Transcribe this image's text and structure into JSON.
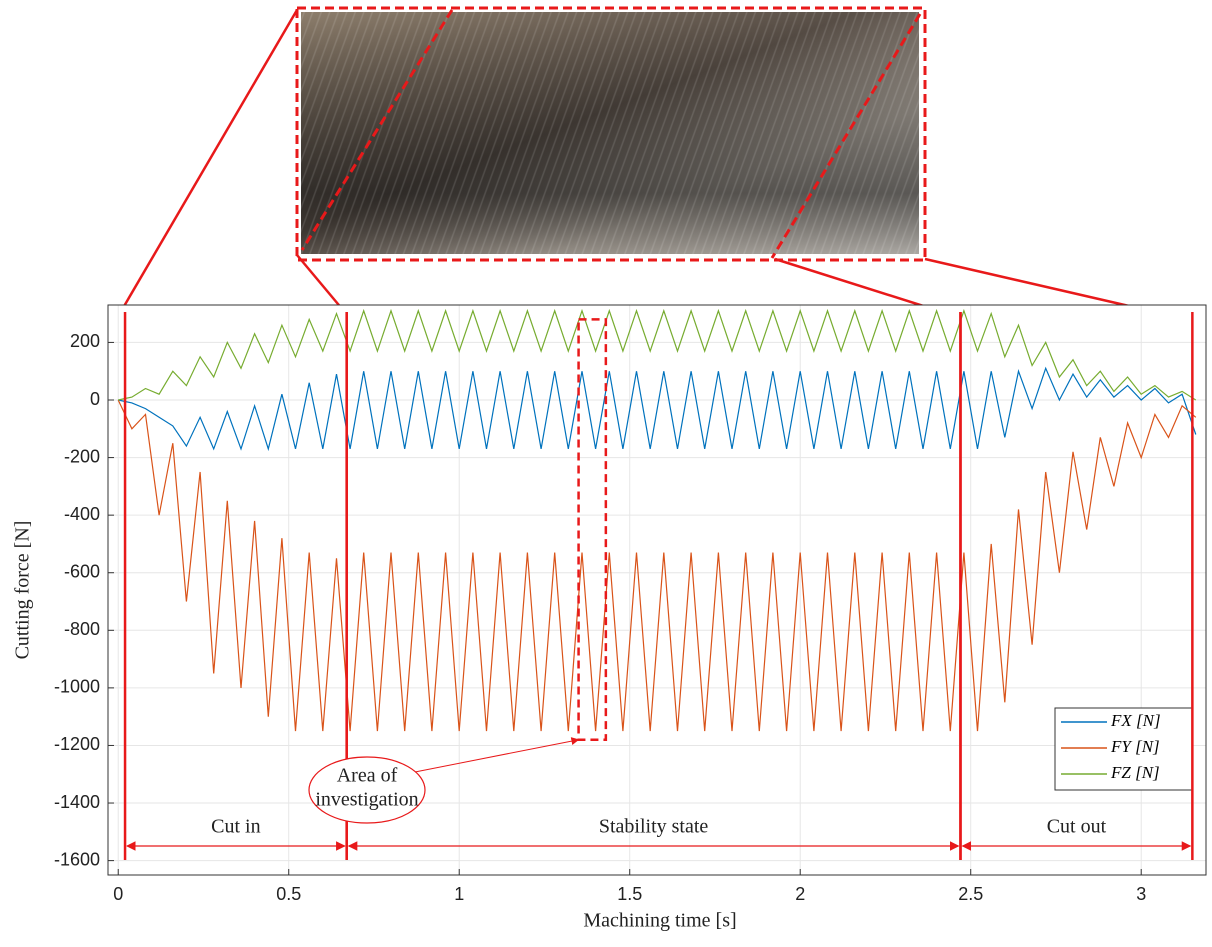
{
  "chart_data": {
    "type": "line",
    "xlabel": "Machining time [s]",
    "ylabel": "Cutting force [N]",
    "x": [
      0,
      0.04,
      0.08,
      0.12,
      0.16,
      0.2,
      0.24,
      0.28,
      0.32,
      0.36,
      0.4,
      0.44,
      0.48,
      0.52,
      0.56,
      0.6,
      0.64,
      0.68,
      0.72,
      0.76,
      0.8,
      0.84,
      0.88,
      0.92,
      0.96,
      1,
      1.04,
      1.08,
      1.12,
      1.16,
      1.2,
      1.24,
      1.28,
      1.32,
      1.36,
      1.4,
      1.44,
      1.48,
      1.52,
      1.56,
      1.6,
      1.64,
      1.68,
      1.72,
      1.76,
      1.8,
      1.84,
      1.88,
      1.92,
      1.96,
      2,
      2.04,
      2.08,
      2.12,
      2.16,
      2.2,
      2.24,
      2.28,
      2.32,
      2.36,
      2.4,
      2.44,
      2.48,
      2.52,
      2.56,
      2.6,
      2.64,
      2.68,
      2.72,
      2.76,
      2.8,
      2.84,
      2.88,
      2.92,
      2.96,
      3,
      3.04,
      3.08,
      3.12,
      3.16
    ],
    "series": [
      {
        "name": "FX [N]",
        "color": "#0072bd",
        "values": [
          0,
          -10,
          -30,
          -60,
          -90,
          -160,
          -60,
          -170,
          -40,
          -170,
          -20,
          -170,
          20,
          -170,
          60,
          -170,
          90,
          -170,
          100,
          -170,
          100,
          -170,
          100,
          -170,
          100,
          -170,
          100,
          -170,
          100,
          -170,
          100,
          -170,
          100,
          -170,
          100,
          -170,
          100,
          -170,
          100,
          -170,
          100,
          -170,
          100,
          -170,
          100,
          -170,
          100,
          -170,
          100,
          -170,
          100,
          -170,
          100,
          -170,
          100,
          -170,
          100,
          -170,
          100,
          -170,
          100,
          -170,
          100,
          -170,
          100,
          -130,
          100,
          -30,
          110,
          0,
          90,
          10,
          70,
          10,
          50,
          0,
          40,
          -10,
          20,
          -120
        ]
      },
      {
        "name": "FY [N]",
        "color": "#d95319",
        "values": [
          0,
          -100,
          -50,
          -400,
          -150,
          -700,
          -250,
          -950,
          -350,
          -1000,
          -420,
          -1100,
          -480,
          -1150,
          -530,
          -1150,
          -550,
          -1150,
          -530,
          -1150,
          -530,
          -1150,
          -530,
          -1150,
          -530,
          -1150,
          -530,
          -1150,
          -530,
          -1150,
          -530,
          -1150,
          -530,
          -1150,
          -530,
          -1150,
          -530,
          -1150,
          -530,
          -1150,
          -530,
          -1150,
          -530,
          -1150,
          -530,
          -1150,
          -530,
          -1150,
          -530,
          -1150,
          -530,
          -1150,
          -530,
          -1150,
          -530,
          -1150,
          -530,
          -1150,
          -530,
          -1150,
          -530,
          -1150,
          -530,
          -1150,
          -500,
          -1050,
          -380,
          -850,
          -250,
          -600,
          -180,
          -450,
          -130,
          -300,
          -80,
          -200,
          -50,
          -130,
          -20,
          -60
        ]
      },
      {
        "name": "FZ [N]",
        "color": "#77ac30",
        "values": [
          0,
          10,
          40,
          20,
          100,
          50,
          150,
          80,
          200,
          110,
          230,
          130,
          260,
          150,
          280,
          170,
          300,
          170,
          310,
          170,
          310,
          170,
          310,
          170,
          310,
          170,
          310,
          170,
          310,
          170,
          310,
          170,
          310,
          170,
          310,
          170,
          310,
          170,
          310,
          170,
          310,
          170,
          310,
          170,
          310,
          170,
          310,
          170,
          310,
          170,
          310,
          170,
          310,
          170,
          310,
          170,
          310,
          170,
          310,
          170,
          310,
          170,
          310,
          170,
          300,
          150,
          260,
          120,
          200,
          80,
          140,
          50,
          100,
          30,
          80,
          20,
          50,
          10,
          30,
          0
        ]
      }
    ],
    "xlim": [
      -0.03,
      3.19
    ],
    "ylim": [
      -1650,
      330
    ],
    "xticks": [
      0,
      0.5,
      1,
      1.5,
      2,
      2.5,
      3
    ],
    "yticks": [
      -1600,
      -1400,
      -1200,
      -1000,
      -800,
      -600,
      -400,
      -200,
      0,
      200
    ],
    "grid": true,
    "legend": "lower right",
    "phases": [
      {
        "label": "Cut in",
        "start": 0.02,
        "end": 0.67
      },
      {
        "label": "Stability state",
        "start": 0.67,
        "end": 2.47
      },
      {
        "label": "Cut out",
        "start": 2.47,
        "end": 3.15
      }
    ],
    "investigation": {
      "label": [
        "Area of",
        "investigation"
      ],
      "start": 1.35,
      "end": 1.43,
      "top": 280,
      "bottom": -1180
    }
  }
}
